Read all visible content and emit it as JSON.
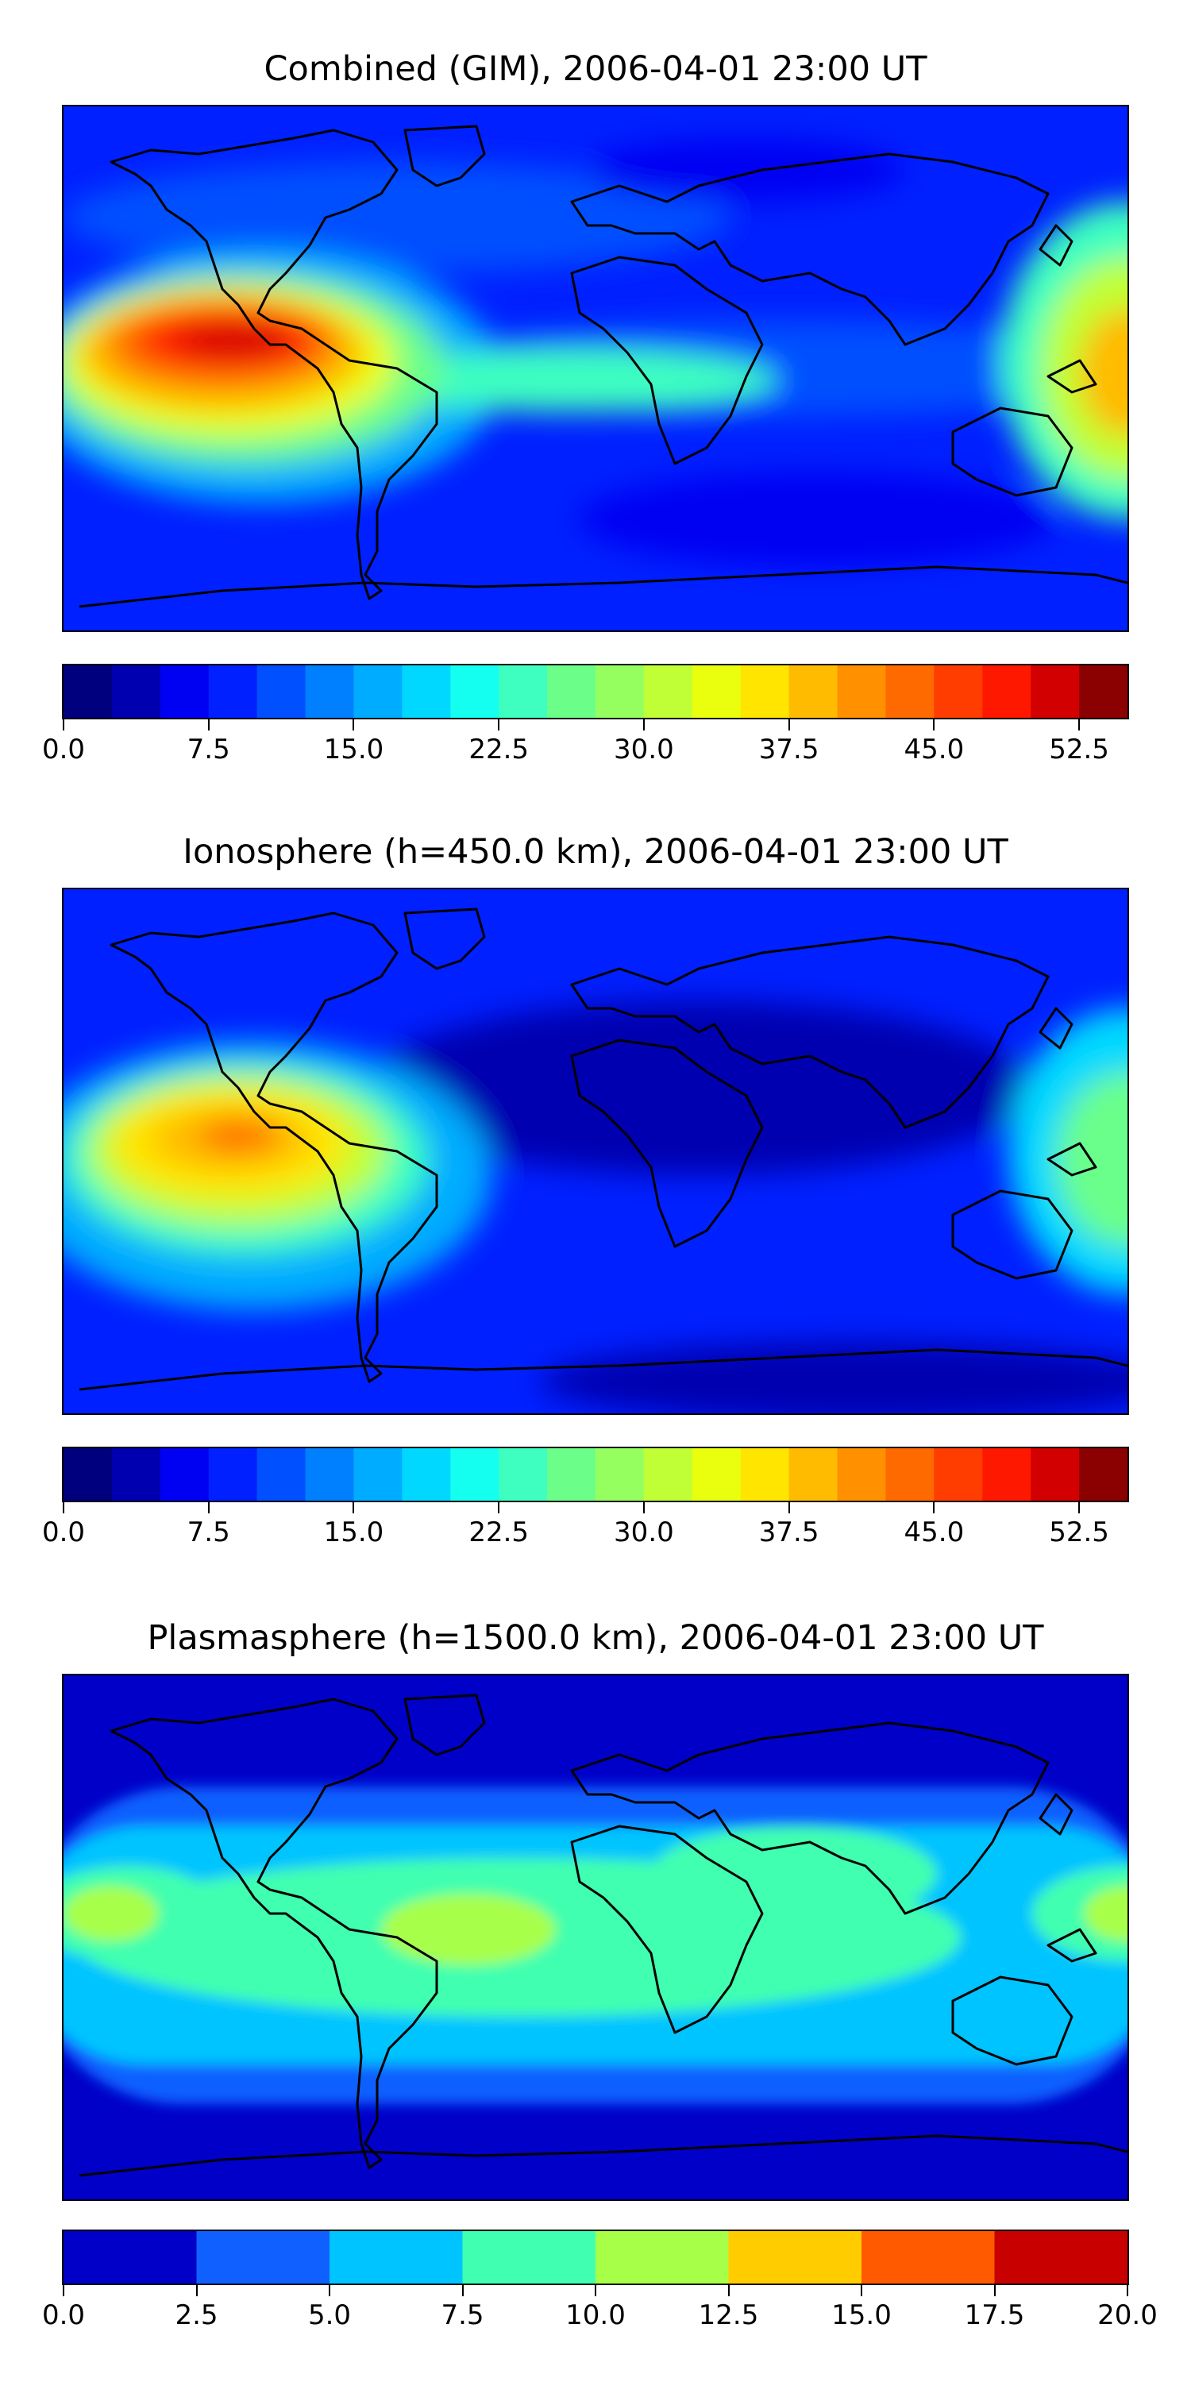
{
  "panels": [
    {
      "title": "Combined (GIM), 2006-04-01 23:00 UT",
      "colorbar": {
        "colors": [
          "#00007f",
          "#0000b0",
          "#0000f2",
          "#0020ff",
          "#0050ff",
          "#0080ff",
          "#00acff",
          "#00d8ff",
          "#14fff0",
          "#3effc0",
          "#6bff8a",
          "#96ff60",
          "#c0ff36",
          "#eaff0d",
          "#ffe500",
          "#ffbb00",
          "#ff9000",
          "#ff6a00",
          "#ff3d00",
          "#ff1800",
          "#d20000",
          "#8b0000"
        ],
        "ticks": [
          "0.0",
          "7.5",
          "15.0",
          "22.5",
          "30.0",
          "37.5",
          "45.0",
          "52.5"
        ],
        "tick_values": [
          0,
          7.5,
          15,
          22.5,
          30,
          37.5,
          45,
          52.5
        ],
        "vmin": 0,
        "vmax": 55
      }
    },
    {
      "title": "Ionosphere  (h=450.0 km), 2006-04-01 23:00 UT",
      "colorbar": {
        "colors": [
          "#00007f",
          "#0000b0",
          "#0000f2",
          "#0020ff",
          "#0050ff",
          "#0080ff",
          "#00acff",
          "#00d8ff",
          "#14fff0",
          "#3effc0",
          "#6bff8a",
          "#96ff60",
          "#c0ff36",
          "#eaff0d",
          "#ffe500",
          "#ffbb00",
          "#ff9000",
          "#ff6a00",
          "#ff3d00",
          "#ff1800",
          "#d20000",
          "#8b0000"
        ],
        "ticks": [
          "0.0",
          "7.5",
          "15.0",
          "22.5",
          "30.0",
          "37.5",
          "45.0",
          "52.5"
        ],
        "tick_values": [
          0,
          7.5,
          15,
          22.5,
          30,
          37.5,
          45,
          52.5
        ],
        "vmin": 0,
        "vmax": 55
      }
    },
    {
      "title": "Plasmasphere (h=1500.0 km), 2006-04-01 23:00 UT",
      "colorbar": {
        "colors": [
          "#0000c8",
          "#1060ff",
          "#00c4ff",
          "#40ffb0",
          "#a8ff48",
          "#ffcc00",
          "#ff5a00",
          "#c80000"
        ],
        "ticks": [
          "0.0",
          "2.5",
          "5.0",
          "7.5",
          "10.0",
          "12.5",
          "15.0",
          "17.5",
          "20.0"
        ],
        "tick_values": [
          0,
          2.5,
          5,
          7.5,
          10,
          12.5,
          15,
          17.5,
          20
        ],
        "vmin": 0,
        "vmax": 20
      }
    }
  ]
}
